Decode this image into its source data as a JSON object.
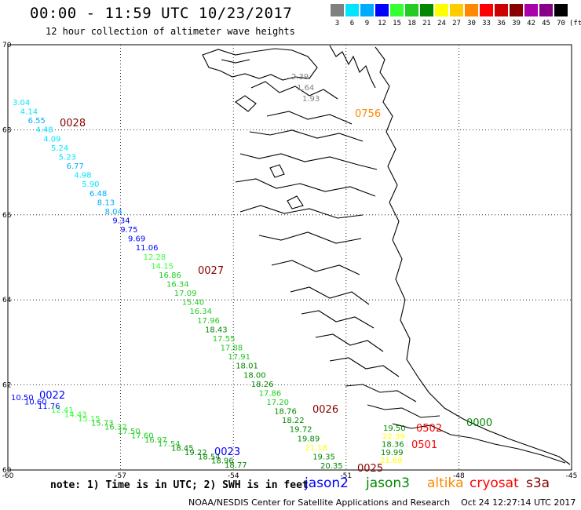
{
  "title": "00:00 - 11:59 UTC 10/23/2017",
  "subtitle": "12 hour collection of altimeter wave heights",
  "color_scale": {
    "unit": "(ft)",
    "swatches": [
      {
        "label": "3",
        "color": "#808080"
      },
      {
        "label": "6",
        "color": "#00e5ff"
      },
      {
        "label": "9",
        "color": "#00aaff"
      },
      {
        "label": "12",
        "color": "#0000ff"
      },
      {
        "label": "15",
        "color": "#33ff33"
      },
      {
        "label": "18",
        "color": "#22cc22"
      },
      {
        "label": "21",
        "color": "#008800"
      },
      {
        "label": "24",
        "color": "#ffff00"
      },
      {
        "label": "27",
        "color": "#ffcc00"
      },
      {
        "label": "30",
        "color": "#ff8800"
      },
      {
        "label": "33",
        "color": "#ff0000"
      },
      {
        "label": "36",
        "color": "#cc0000"
      },
      {
        "label": "39",
        "color": "#880000"
      },
      {
        "label": "42",
        "color": "#aa00aa"
      },
      {
        "label": "45",
        "color": "#880088"
      },
      {
        "label": "70",
        "color": "#000000"
      }
    ]
  },
  "map": {
    "lon_labels": [
      "-60",
      "-57",
      "-54",
      "-51",
      "-48",
      "-45"
    ],
    "lat_labels": [
      "70",
      "68",
      "66",
      "64",
      "62",
      "60"
    ],
    "lon_range": [
      -60,
      -45
    ],
    "lat_range": [
      60,
      70
    ]
  },
  "tracks": [
    {
      "pass_label": "0028",
      "label_color": "#880000",
      "points": [
        {
          "v": "3.04",
          "c": "#00e5ff"
        },
        {
          "v": "4.14",
          "c": "#00e5ff"
        },
        {
          "v": "6.55",
          "c": "#00aaff"
        },
        {
          "v": "4.48",
          "c": "#00e5ff"
        },
        {
          "v": "4.09",
          "c": "#00e5ff"
        },
        {
          "v": "5.24",
          "c": "#00e5ff"
        },
        {
          "v": "5.23",
          "c": "#00e5ff"
        },
        {
          "v": "6.77",
          "c": "#00aaff"
        },
        {
          "v": "4.98",
          "c": "#00e5ff"
        },
        {
          "v": "5.90",
          "c": "#00e5ff"
        },
        {
          "v": "6.48",
          "c": "#00aaff"
        },
        {
          "v": "8.13",
          "c": "#00aaff"
        },
        {
          "v": "8.04",
          "c": "#00aaff"
        },
        {
          "v": "9.34",
          "c": "#0000ff"
        },
        {
          "v": "9.75",
          "c": "#0000ff"
        },
        {
          "v": "9.69",
          "c": "#0000ff"
        },
        {
          "v": "11.06",
          "c": "#0000ff"
        },
        {
          "v": "12.28",
          "c": "#33ff33"
        },
        {
          "v": "14.15",
          "c": "#33ff33"
        },
        {
          "v": "16.86",
          "c": "#22cc22"
        },
        {
          "v": "16.34",
          "c": "#22cc22"
        },
        {
          "v": "17.09",
          "c": "#22cc22"
        },
        {
          "v": "15.40",
          "c": "#22cc22"
        },
        {
          "v": "16.34",
          "c": "#22cc22"
        },
        {
          "v": "17.96",
          "c": "#22cc22"
        },
        {
          "v": "18.43",
          "c": "#008800"
        },
        {
          "v": "17.55",
          "c": "#22cc22"
        },
        {
          "v": "17.88",
          "c": "#22cc22"
        },
        {
          "v": "17.91",
          "c": "#22cc22"
        },
        {
          "v": "18.01",
          "c": "#008800"
        },
        {
          "v": "18.00",
          "c": "#008800"
        },
        {
          "v": "18.26",
          "c": "#008800"
        },
        {
          "v": "17.86",
          "c": "#22cc22"
        },
        {
          "v": "17.20",
          "c": "#22cc22"
        },
        {
          "v": "18.76",
          "c": "#008800"
        },
        {
          "v": "18.22",
          "c": "#008800"
        },
        {
          "v": "19.72",
          "c": "#008800"
        },
        {
          "v": "19.89",
          "c": "#008800"
        },
        {
          "v": "21.18",
          "c": "#ffff00"
        },
        {
          "v": "19.35",
          "c": "#008800"
        },
        {
          "v": "20.35",
          "c": "#008800"
        }
      ]
    },
    {
      "pass_label": "0027",
      "label_color": "#880000"
    },
    {
      "pass_label": "0026",
      "label_color": "#880000"
    },
    {
      "pass_label": "0025",
      "label_color": "#880000"
    },
    {
      "pass_label": "0022",
      "label_color": "#0000ff",
      "points": [
        {
          "v": "10.50",
          "c": "#0000ff"
        },
        {
          "v": "10.60",
          "c": "#0000ff"
        },
        {
          "v": "11.76",
          "c": "#0000ff"
        },
        {
          "v": "12.41",
          "c": "#33ff33"
        },
        {
          "v": "14.43",
          "c": "#33ff33"
        },
        {
          "v": "15.15",
          "c": "#33ff33"
        },
        {
          "v": "15.73",
          "c": "#22cc22"
        },
        {
          "v": "16.32",
          "c": "#22cc22"
        },
        {
          "v": "17.50",
          "c": "#22cc22"
        },
        {
          "v": "17.60",
          "c": "#22cc22"
        },
        {
          "v": "16.97",
          "c": "#22cc22"
        },
        {
          "v": "17.54",
          "c": "#22cc22"
        },
        {
          "v": "18.45",
          "c": "#008800"
        },
        {
          "v": "19.22",
          "c": "#008800"
        },
        {
          "v": "18.54",
          "c": "#008800"
        },
        {
          "v": "18.96",
          "c": "#008800"
        },
        {
          "v": "18.77",
          "c": "#008800"
        }
      ]
    },
    {
      "pass_label": "0023",
      "label_color": "#0000ff"
    },
    {
      "pass_label": "0756",
      "label_color": "#ff8800",
      "points": [
        {
          "v": "2.39",
          "c": "#808080"
        },
        {
          "v": "1.64",
          "c": "#808080"
        },
        {
          "v": "1.93",
          "c": "#808080"
        }
      ]
    },
    {
      "pass_label": "0502",
      "label_color": "#ff0000"
    },
    {
      "pass_label": "0501",
      "label_color": "#ff0000"
    },
    {
      "pass_label": "0000",
      "label_color": "#008800",
      "points": [
        {
          "v": "19.50",
          "c": "#008800"
        },
        {
          "v": "22.39",
          "c": "#ffff00"
        },
        {
          "v": "18.36",
          "c": "#008800"
        },
        {
          "v": "19.99",
          "c": "#008800"
        },
        {
          "v": "21.69",
          "c": "#ffff00"
        }
      ]
    }
  ],
  "legend": {
    "note": "note: 1) Time is in UTC; 2) SWH is in feet",
    "satellites": [
      {
        "name": "jason2",
        "color": "#0000ff"
      },
      {
        "name": "jason3",
        "color": "#008800"
      },
      {
        "name": "altika",
        "color": "#ff8800"
      },
      {
        "name": "cryosat",
        "color": "#ff0000"
      },
      {
        "name": "s3a",
        "color": "#880000"
      }
    ]
  },
  "footer": {
    "credit": "NOAA/NESDIS Center for Satellite Applications and Research",
    "timestamp": "Oct 24 12:27:14 UTC 2017"
  }
}
